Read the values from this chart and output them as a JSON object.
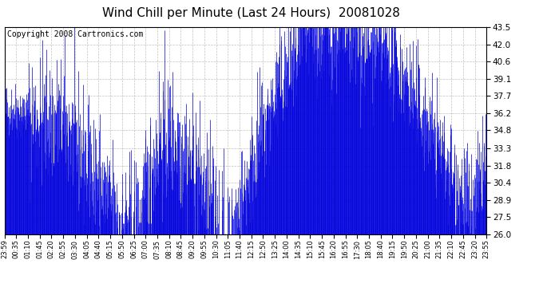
{
  "title": "Wind Chill per Minute (Last 24 Hours)  20081028",
  "copyright": "Copyright 2008 Cartronics.com",
  "line_color": "#0000DD",
  "bg_color": "#ffffff",
  "plot_bg_color": "#ffffff",
  "grid_color": "#bbbbbb",
  "yticks": [
    26.0,
    27.5,
    28.9,
    30.4,
    31.8,
    33.3,
    34.8,
    36.2,
    37.7,
    39.1,
    40.6,
    42.0,
    43.5
  ],
  "ymin": 26.0,
  "ymax": 43.5,
  "xtick_labels": [
    "23:59",
    "00:35",
    "01:10",
    "01:45",
    "02:20",
    "02:55",
    "03:30",
    "04:05",
    "04:40",
    "05:15",
    "05:50",
    "06:25",
    "07:00",
    "07:35",
    "08:10",
    "08:45",
    "09:20",
    "09:55",
    "10:30",
    "11:05",
    "11:40",
    "12:15",
    "12:50",
    "13:25",
    "14:00",
    "14:35",
    "15:10",
    "15:45",
    "16:20",
    "16:55",
    "17:30",
    "18:05",
    "18:40",
    "19:15",
    "19:50",
    "20:25",
    "21:00",
    "21:35",
    "22:10",
    "22:45",
    "23:20",
    "23:55"
  ],
  "title_fontsize": 11,
  "copyright_fontsize": 7
}
